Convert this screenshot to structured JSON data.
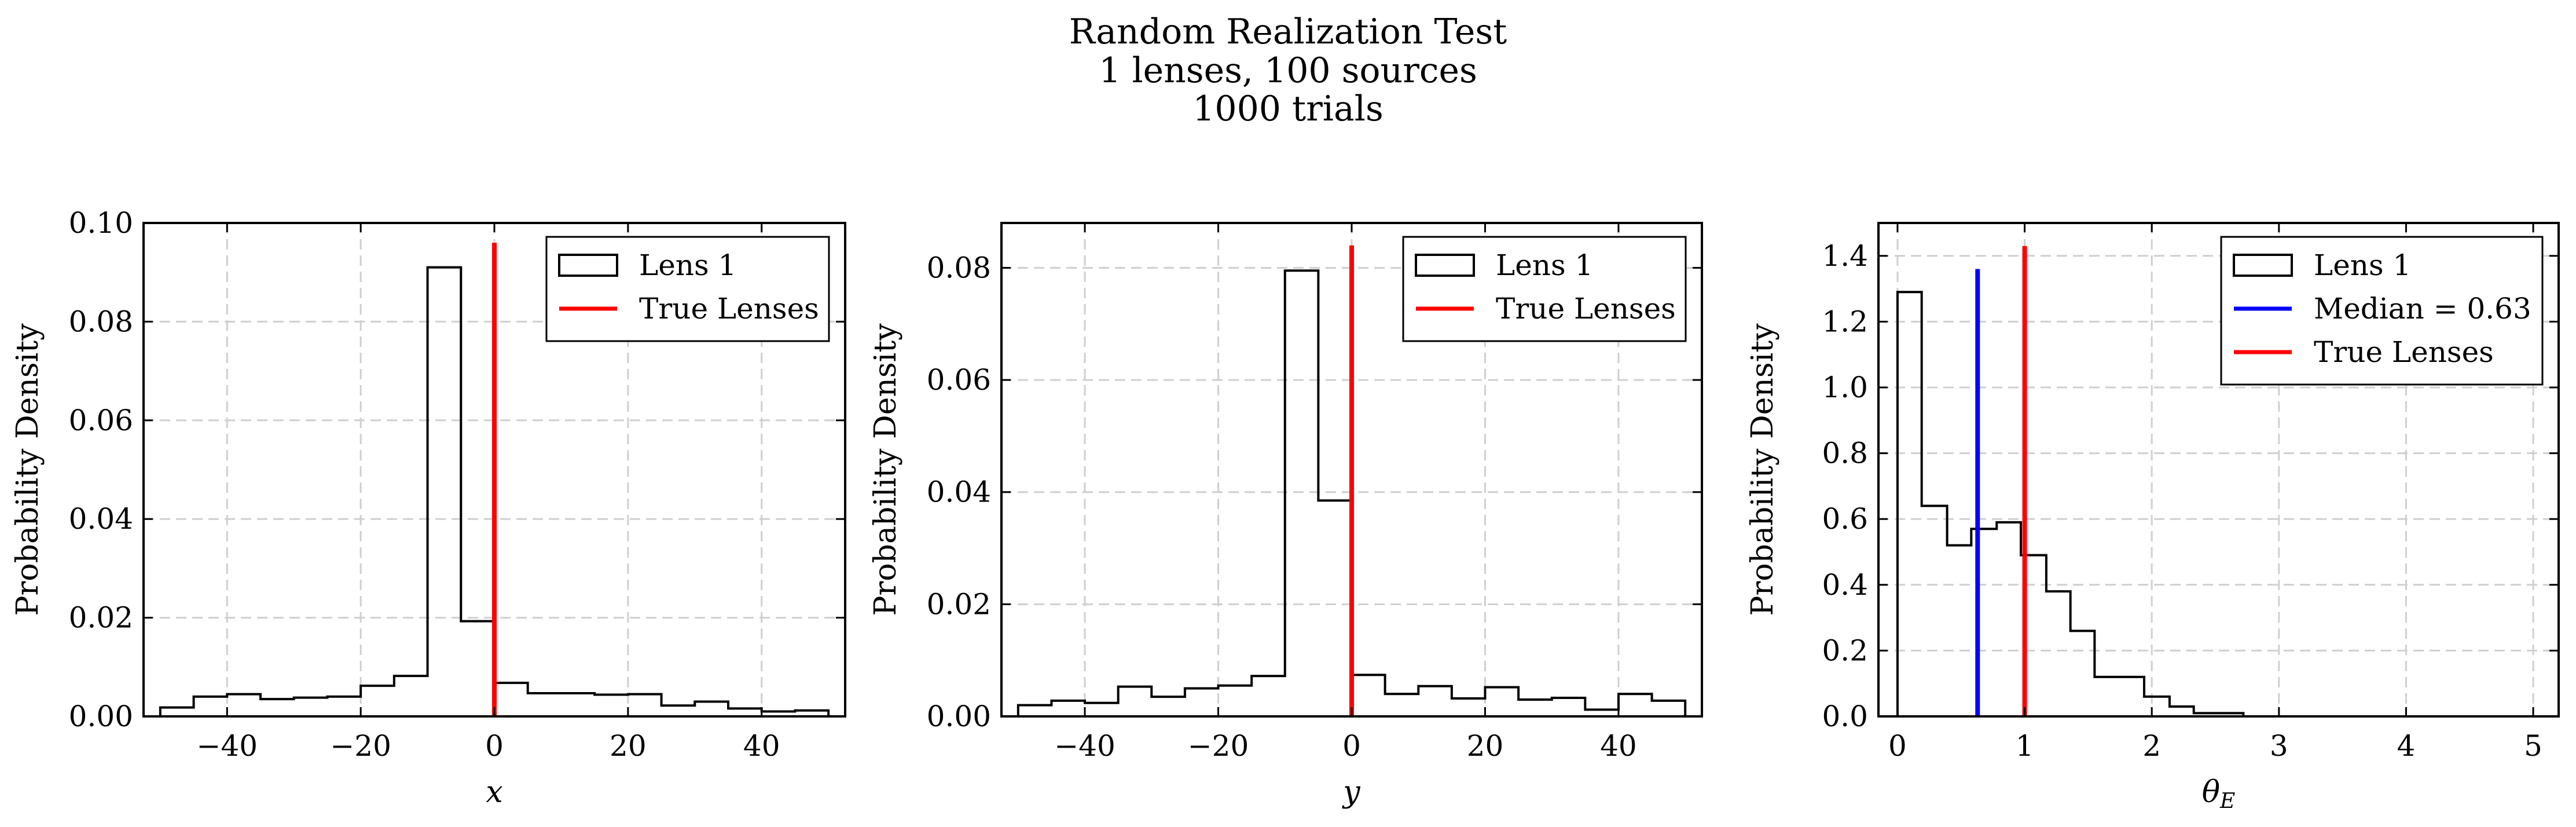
{
  "figure": {
    "title_lines": [
      "Random Realization Test",
      "1 lenses, 100 sources",
      "1000 trials"
    ]
  },
  "chart_data": [
    {
      "type": "histogram",
      "xlabel": "x",
      "ylabel": "Probability Density",
      "xlim": [
        -52.5,
        52.5
      ],
      "ylim": [
        0,
        0.1
      ],
      "xticks": [
        -40,
        -20,
        0,
        20,
        40
      ],
      "xtick_labels": [
        "−40",
        "−20",
        "0",
        "20",
        "40"
      ],
      "yticks": [
        0.0,
        0.02,
        0.04,
        0.06,
        0.08,
        0.1
      ],
      "ytick_labels": [
        "0.00",
        "0.02",
        "0.04",
        "0.06",
        "0.08",
        "0.10"
      ],
      "grid": true,
      "legend_position": "top-right",
      "bin_edges": [
        -50,
        -45,
        -40,
        -35,
        -30,
        -25,
        -20,
        -15,
        -10,
        -5,
        0,
        5,
        10,
        15,
        20,
        25,
        30,
        35,
        40,
        45,
        50
      ],
      "series": [
        {
          "name": "Lens 1",
          "kind": "step",
          "color": "#000000",
          "values": [
            0.0018,
            0.004,
            0.0045,
            0.0035,
            0.0038,
            0.004,
            0.0062,
            0.0082,
            0.091,
            0.0193,
            0.0068,
            0.0047,
            0.0047,
            0.0044,
            0.0045,
            0.0022,
            0.003,
            0.0016,
            0.001,
            0.0012
          ]
        }
      ],
      "vlines": [
        {
          "name": "True Lenses",
          "x": 0,
          "ymax": 0.096,
          "color": "#ff0000"
        }
      ]
    },
    {
      "type": "histogram",
      "xlabel": "y",
      "ylabel": "Probability Density",
      "xlim": [
        -52.5,
        52.5
      ],
      "ylim": [
        0,
        0.088
      ],
      "xticks": [
        -40,
        -20,
        0,
        20,
        40
      ],
      "xtick_labels": [
        "−40",
        "−20",
        "0",
        "20",
        "40"
      ],
      "yticks": [
        0.0,
        0.02,
        0.04,
        0.06,
        0.08
      ],
      "ytick_labels": [
        "0.00",
        "0.02",
        "0.04",
        "0.06",
        "0.08"
      ],
      "grid": true,
      "legend_position": "top-right",
      "bin_edges": [
        -50,
        -45,
        -40,
        -35,
        -30,
        -25,
        -20,
        -15,
        -10,
        -5,
        0,
        5,
        10,
        15,
        20,
        25,
        30,
        35,
        40,
        45,
        50
      ],
      "series": [
        {
          "name": "Lens 1",
          "kind": "step",
          "color": "#000000",
          "values": [
            0.002,
            0.0028,
            0.0024,
            0.0053,
            0.0035,
            0.005,
            0.0055,
            0.0072,
            0.0795,
            0.0385,
            0.0074,
            0.004,
            0.0054,
            0.0032,
            0.0052,
            0.003,
            0.0033,
            0.0012,
            0.004,
            0.0028
          ]
        }
      ],
      "vlines": [
        {
          "name": "True Lenses",
          "x": 0,
          "ymax": 0.084,
          "color": "#ff0000"
        }
      ]
    },
    {
      "type": "histogram",
      "xlabel": "θE",
      "ylabel": "Probability Density",
      "xlim": [
        -0.15,
        5.2
      ],
      "ylim": [
        0,
        1.5
      ],
      "xticks": [
        0,
        1,
        2,
        3,
        4,
        5
      ],
      "xtick_labels": [
        "0",
        "1",
        "2",
        "3",
        "4",
        "5"
      ],
      "yticks": [
        0.0,
        0.2,
        0.4,
        0.6,
        0.8,
        1.0,
        1.2,
        1.4
      ],
      "ytick_labels": [
        "0.0",
        "0.2",
        "0.4",
        "0.6",
        "0.8",
        "1.0",
        "1.2",
        "1.4"
      ],
      "grid": true,
      "legend_position": "top-right",
      "bin_edges": [
        0,
        0.19,
        0.39,
        0.58,
        0.78,
        0.97,
        1.17,
        1.36,
        1.55,
        1.75,
        1.94,
        2.14,
        2.33,
        2.52,
        2.72,
        2.91,
        3.11,
        3.3,
        3.5,
        3.69,
        3.89,
        4.08,
        4.27,
        4.47,
        4.66,
        4.86,
        5.05
      ],
      "series": [
        {
          "name": "Lens 1",
          "kind": "step",
          "color": "#000000",
          "values": [
            1.29,
            0.64,
            0.52,
            0.57,
            0.59,
            0.49,
            0.38,
            0.26,
            0.12,
            0.12,
            0.06,
            0.03,
            0.01,
            0.01,
            0,
            0,
            0,
            0,
            0,
            0,
            0,
            0,
            0,
            0,
            0,
            0
          ]
        }
      ],
      "vlines": [
        {
          "name": "Median = 0.63",
          "x": 0.63,
          "ymax": 1.36,
          "color": "#0000ff"
        },
        {
          "name": "True Lenses",
          "x": 1.0,
          "ymax": 1.43,
          "color": "#ff0000"
        }
      ]
    }
  ]
}
